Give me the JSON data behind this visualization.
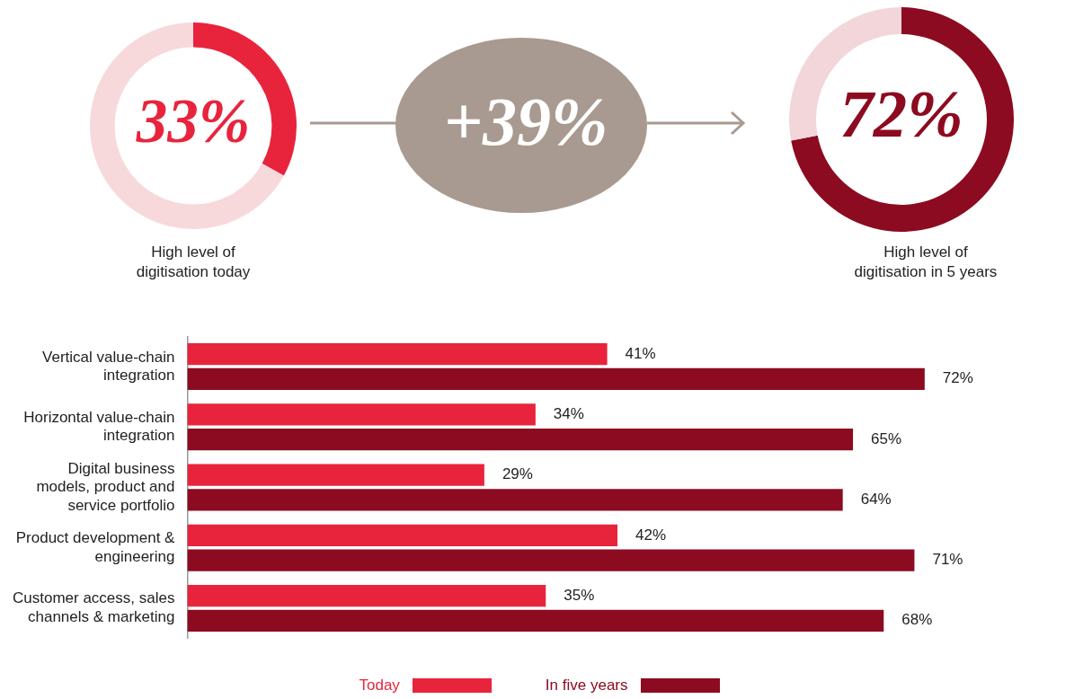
{
  "chart_data": [
    {
      "type": "donut",
      "title": "High level of digitisation today",
      "categories": [
        null,
        null
      ],
      "values": [
        33,
        67
      ],
      "colors": [
        "#e8243c",
        "#f7d9dc"
      ],
      "value_labels": [
        "33%",
        null
      ]
    },
    {
      "type": "other",
      "annotations": [
        "+39%"
      ]
    },
    {
      "type": "donut",
      "title": "High level of digitisation in 5 years",
      "categories": [
        null,
        null
      ],
      "values": [
        72,
        28
      ],
      "colors": [
        "#8c0b20",
        "#f2d6da"
      ],
      "value_labels": [
        "72%",
        null
      ]
    },
    {
      "type": "bar",
      "orientation": "horizontal",
      "categories": [
        "Vertical value-chain integration",
        "Horizontal value-chain integration",
        "Digital business models, product and service portfolio",
        "Product development & engineering",
        "Customer access, sales channels & marketing"
      ],
      "tick_labels": "y",
      "legend": "bottom",
      "series": [
        {
          "name": "Today",
          "color": "#e8243c",
          "values": [
            41,
            34,
            29,
            42,
            35
          ],
          "value_labels": [
            "41%",
            "34%",
            "29%",
            "42%",
            "35%"
          ]
        },
        {
          "name": "In five years",
          "color": "#8c0b20",
          "values": [
            72,
            65,
            64,
            71,
            68
          ],
          "value_labels": [
            "72%",
            "65%",
            "64%",
            "71%",
            "68%"
          ]
        }
      ]
    }
  ]
}
